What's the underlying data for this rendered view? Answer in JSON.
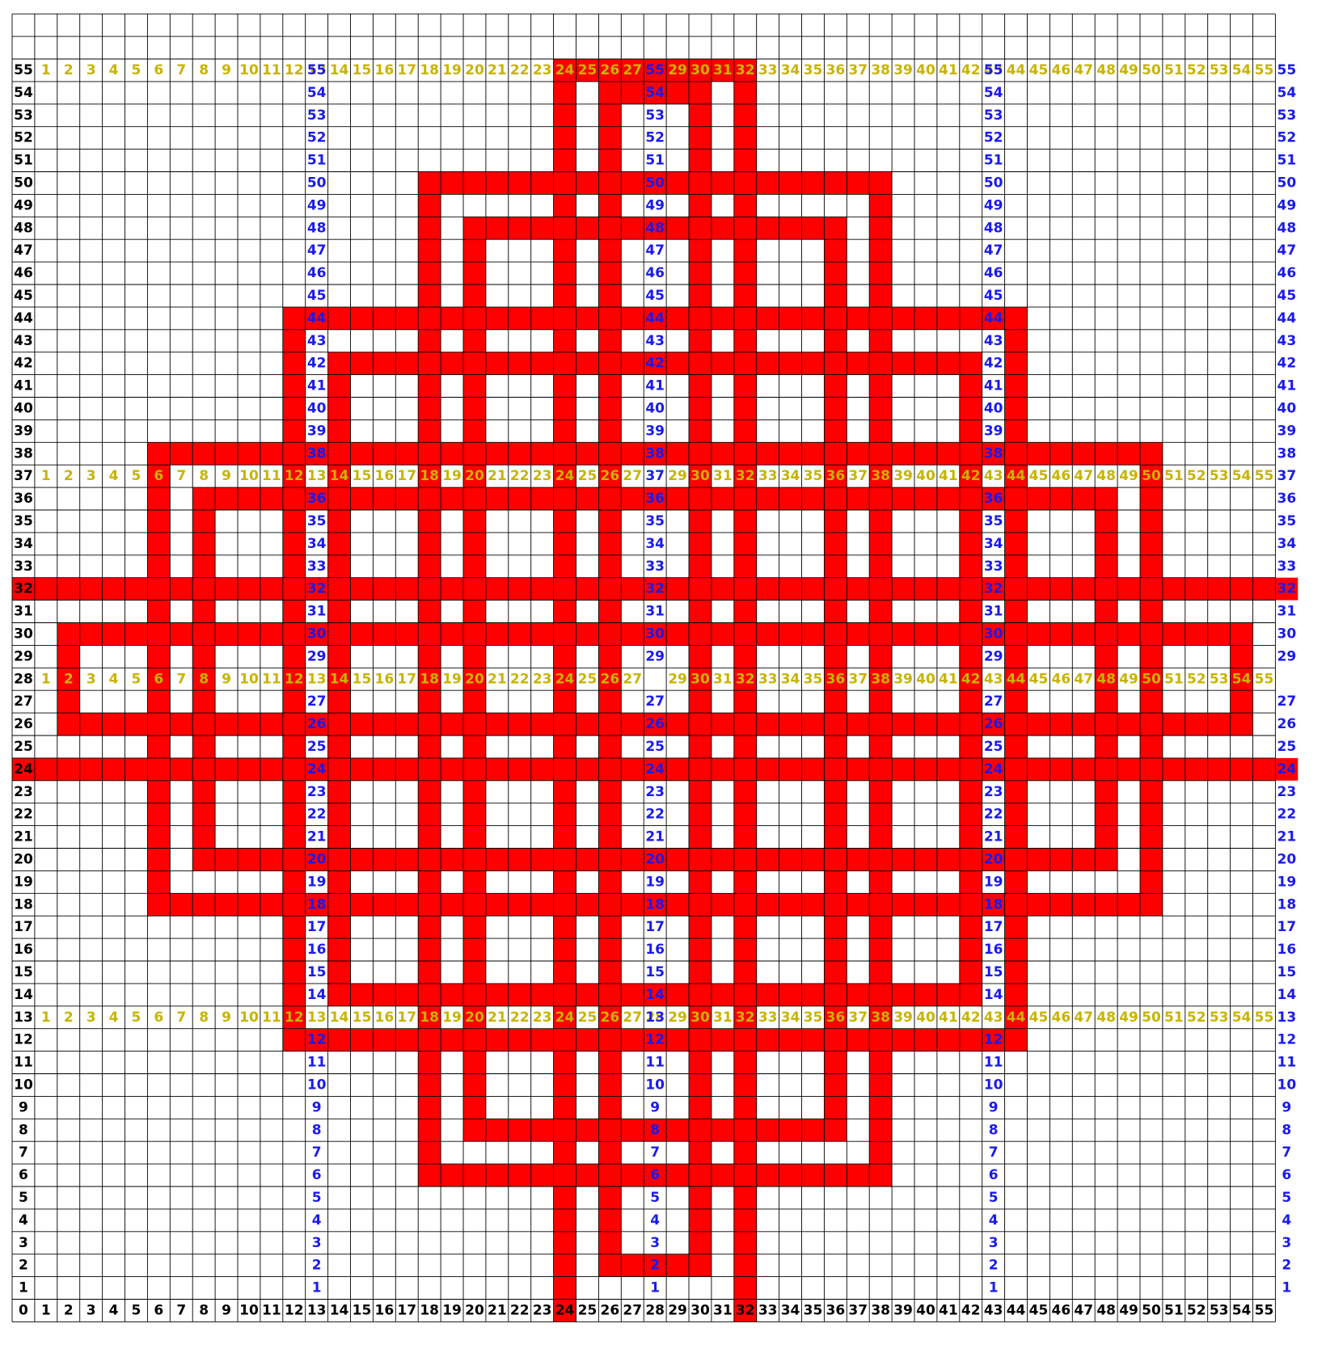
{
  "colors": {
    "background": "#ffffff",
    "grid_line": "#000000",
    "knot": "#ff0000",
    "column_label": "#c8b400",
    "row_label_blue": "#1a1aee",
    "axis_label": "#000000"
  },
  "grid": {
    "columns": 56,
    "rows": 56
  },
  "labels": {
    "origin": "0",
    "bottom_axis": [
      "1",
      "2",
      "3",
      "4",
      "5",
      "6",
      "7",
      "8",
      "9",
      "10",
      "11",
      "12",
      "13",
      "14",
      "15",
      "16",
      "17",
      "18",
      "19",
      "20",
      "21",
      "22",
      "23",
      "24",
      "25",
      "26",
      "27",
      "28",
      "29",
      "30",
      "31",
      "32",
      "33",
      "34",
      "35",
      "36",
      "37",
      "38",
      "39",
      "40",
      "41",
      "42",
      "43",
      "44",
      "45",
      "46",
      "47",
      "48",
      "49",
      "50",
      "51",
      "52",
      "53",
      "54",
      "55"
    ],
    "left_axis": [
      "55",
      "54",
      "53",
      "52",
      "51",
      "50",
      "49",
      "48",
      "47",
      "46",
      "45",
      "44",
      "43",
      "42",
      "41",
      "40",
      "39",
      "38",
      "37",
      "36",
      "35",
      "34",
      "33",
      "32",
      "31",
      "30",
      "29",
      "28",
      "27",
      "26",
      "25",
      "24",
      "23",
      "22",
      "21",
      "20",
      "19",
      "18",
      "17",
      "16",
      "15",
      "14",
      "13",
      "12",
      "11",
      "10",
      "9",
      "8",
      "7",
      "6",
      "5",
      "4",
      "3",
      "2",
      "1"
    ],
    "yellow_rows": [
      {
        "row": 55,
        "omit": [
          28
        ]
      },
      {
        "row": 37,
        "omit": [
          28
        ]
      },
      {
        "row": 28,
        "omit": [
          28
        ]
      },
      {
        "row": 13,
        "omit": []
      }
    ],
    "blue_columns": [
      {
        "column": 13,
        "omit": [
          37,
          28,
          13
        ]
      },
      {
        "column": 28,
        "omit": [
          28
        ]
      },
      {
        "column": 43,
        "omit": [
          37,
          28,
          13
        ]
      },
      {
        "column": 56,
        "omit": [
          28
        ]
      }
    ]
  },
  "knot_segments": [
    {
      "axis": "h",
      "at": 55,
      "from": 24,
      "to": 32
    },
    {
      "axis": "h",
      "at": 54,
      "from": 26,
      "to": 30
    },
    {
      "axis": "h",
      "at": 50,
      "from": 18,
      "to": 38
    },
    {
      "axis": "h",
      "at": 48,
      "from": 20,
      "to": 36
    },
    {
      "axis": "h",
      "at": 44,
      "from": 12,
      "to": 44
    },
    {
      "axis": "h",
      "at": 42,
      "from": 14,
      "to": 42
    },
    {
      "axis": "h",
      "at": 38,
      "from": 6,
      "to": 50
    },
    {
      "axis": "h",
      "at": 36,
      "from": 8,
      "to": 48
    },
    {
      "axis": "h",
      "at": 32,
      "from": 0,
      "to": 56
    },
    {
      "axis": "h",
      "at": 30,
      "from": 2,
      "to": 54
    },
    {
      "axis": "h",
      "at": 26,
      "from": 2,
      "to": 54
    },
    {
      "axis": "h",
      "at": 24,
      "from": 0,
      "to": 56
    },
    {
      "axis": "h",
      "at": 20,
      "from": 8,
      "to": 48
    },
    {
      "axis": "h",
      "at": 18,
      "from": 6,
      "to": 50
    },
    {
      "axis": "h",
      "at": 14,
      "from": 14,
      "to": 42
    },
    {
      "axis": "h",
      "at": 12,
      "from": 12,
      "to": 44
    },
    {
      "axis": "h",
      "at": 8,
      "from": 20,
      "to": 36
    },
    {
      "axis": "h",
      "at": 6,
      "from": 18,
      "to": 38
    },
    {
      "axis": "h",
      "at": 2,
      "from": 26,
      "to": 30
    },
    {
      "axis": "v",
      "at": 24,
      "from": 0,
      "to": 55
    },
    {
      "axis": "v",
      "at": 32,
      "from": 0,
      "to": 55
    },
    {
      "axis": "v",
      "at": 26,
      "from": 2,
      "to": 54
    },
    {
      "axis": "v",
      "at": 30,
      "from": 2,
      "to": 54
    },
    {
      "axis": "v",
      "at": 18,
      "from": 6,
      "to": 50
    },
    {
      "axis": "v",
      "at": 38,
      "from": 6,
      "to": 50
    },
    {
      "axis": "v",
      "at": 20,
      "from": 8,
      "to": 48
    },
    {
      "axis": "v",
      "at": 36,
      "from": 8,
      "to": 48
    },
    {
      "axis": "v",
      "at": 12,
      "from": 12,
      "to": 44
    },
    {
      "axis": "v",
      "at": 44,
      "from": 12,
      "to": 44
    },
    {
      "axis": "v",
      "at": 14,
      "from": 14,
      "to": 42
    },
    {
      "axis": "v",
      "at": 42,
      "from": 14,
      "to": 42
    },
    {
      "axis": "v",
      "at": 6,
      "from": 18,
      "to": 38
    },
    {
      "axis": "v",
      "at": 50,
      "from": 18,
      "to": 38
    },
    {
      "axis": "v",
      "at": 8,
      "from": 20,
      "to": 36
    },
    {
      "axis": "v",
      "at": 48,
      "from": 20,
      "to": 36
    },
    {
      "axis": "v",
      "at": 2,
      "from": 26,
      "to": 30
    },
    {
      "axis": "v",
      "at": 54,
      "from": 26,
      "to": 30
    }
  ]
}
